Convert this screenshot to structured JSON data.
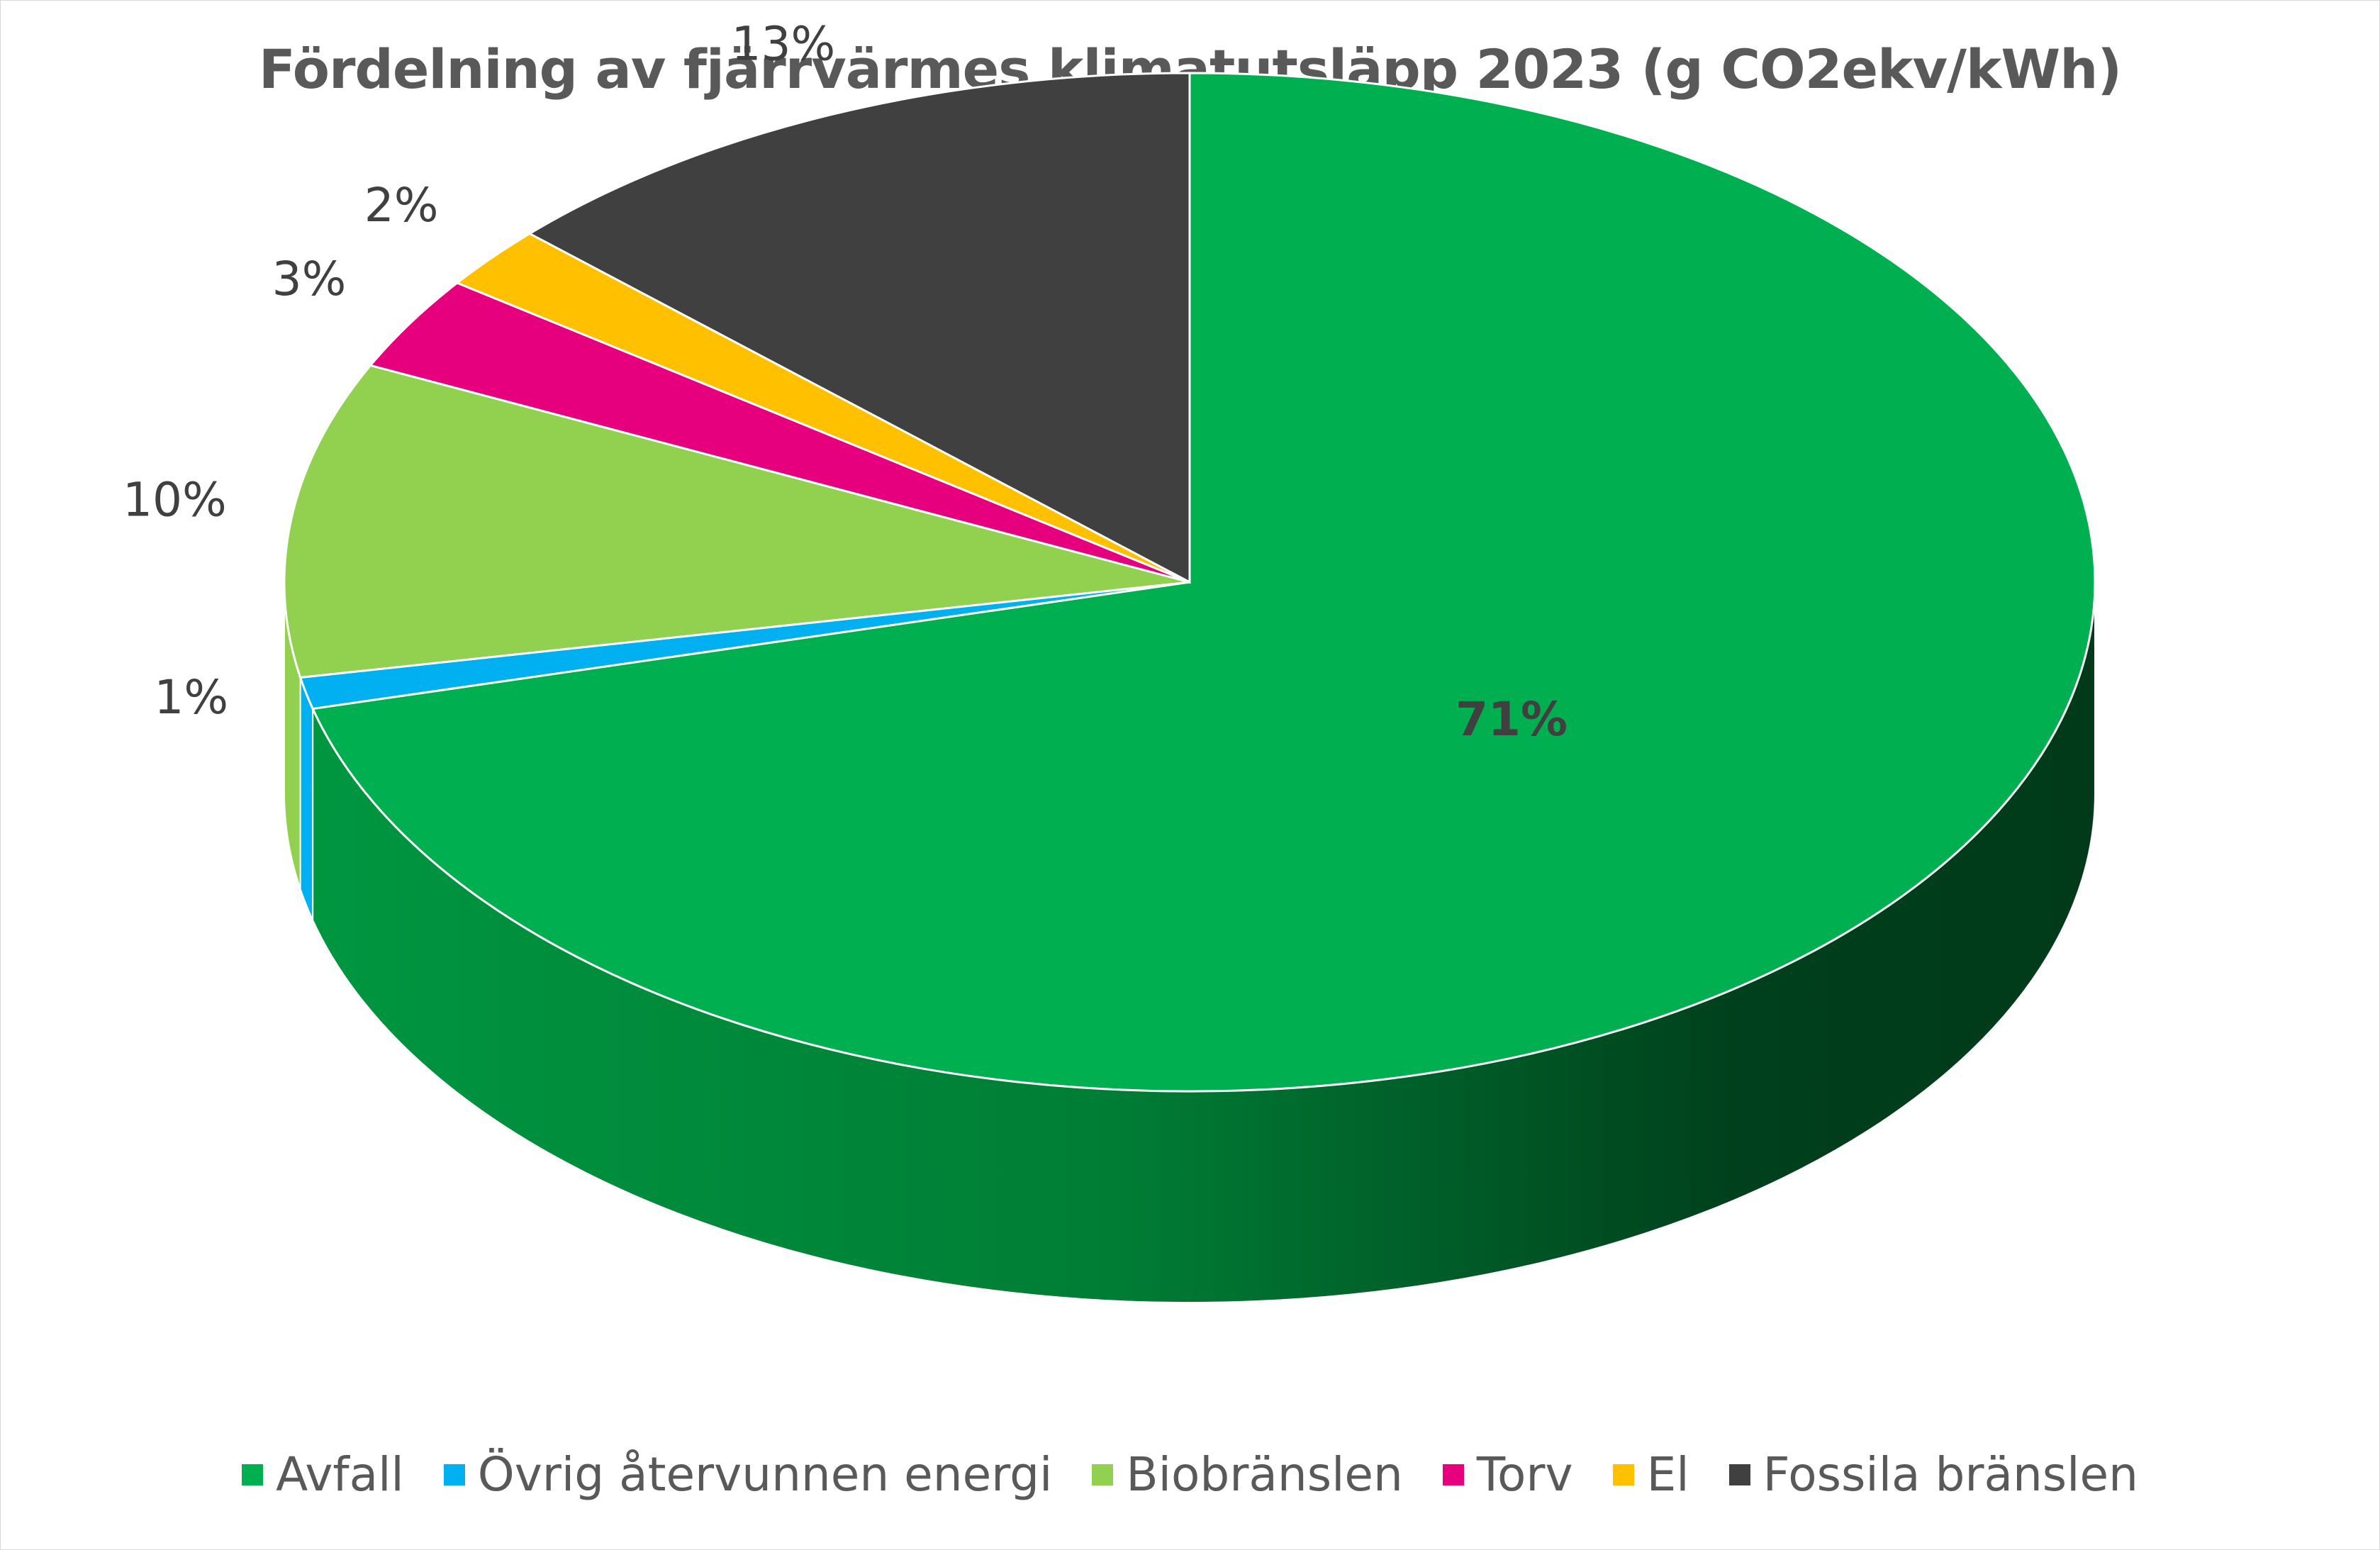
{
  "chart_data": {
    "type": "pie",
    "title": "Fördelning av fjärrvärmes klimatutsläpp 2023 (g CO2ekv/kWh)",
    "categories": [
      "Avfall",
      "Övrig återvunnen energi",
      "Biobränslen",
      "Torv",
      "El",
      "Fossila bränslen"
    ],
    "values": [
      71,
      1,
      10,
      3,
      2,
      13
    ],
    "data_labels": [
      "71%",
      "1%",
      "10%",
      "3%",
      "2%",
      "13%"
    ],
    "colors": [
      "#00b050",
      "#00b0f0",
      "#92d050",
      "#e6007e",
      "#ffc000",
      "#404040"
    ],
    "style": "3d",
    "legend_position": "bottom"
  }
}
